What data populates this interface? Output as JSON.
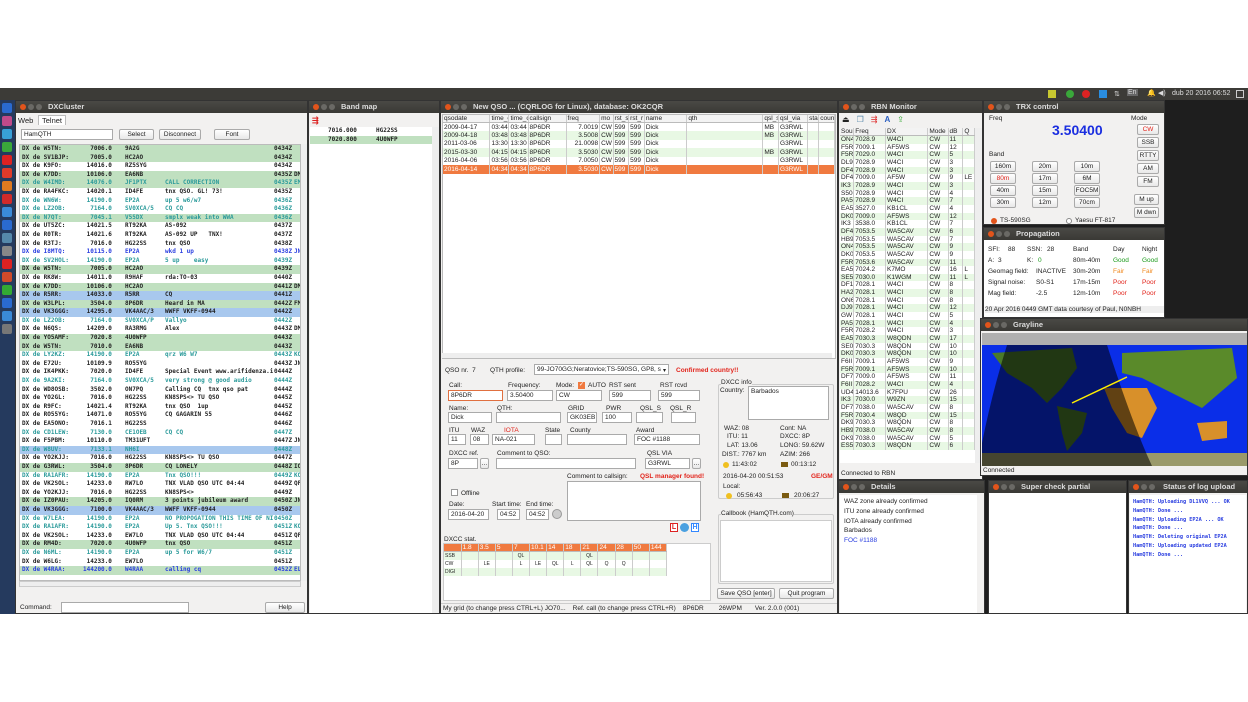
{
  "panel": {
    "clock": "dub 20 2016 06:52",
    "keyboard": "En"
  },
  "dxcluster": {
    "title": "DXCluster",
    "tabs": [
      "Web",
      "Telnet"
    ],
    "active_tab": "Telnet",
    "server": "HamQTH",
    "select": "Select",
    "disconnect": "Disconnect",
    "font": "Font",
    "command_label": "Command:",
    "command_value": "",
    "help": "Help",
    "rows": [
      [
        "W5TN:",
        "7006.0",
        "9A2G",
        "",
        "0434Z",
        "",
        "g",
        "k"
      ],
      [
        "SV1BJP:",
        "7005.0",
        "HC2AO",
        "",
        "0434Z",
        "",
        "g",
        "k"
      ],
      [
        "K9FO:",
        "14016.0",
        "RZ5SYG",
        "",
        "0434Z",
        "",
        "w",
        "k"
      ],
      [
        "K7DD:",
        "10106.0",
        "EA6NB",
        "",
        "0435Z",
        "DM33",
        "g",
        "k"
      ],
      [
        "W4IMD:",
        "14076.0",
        "JF1PTX",
        "CALL CORRECTION",
        "0435Z",
        "EM84",
        "g",
        "t"
      ],
      [
        "RA4FKC:",
        "14020.1",
        "ID4FE",
        "tnx QSO. GL! 73!",
        "0435Z",
        "",
        "w",
        "k"
      ],
      [
        "WN6W:",
        "14190.0",
        "EP2A",
        "up 5 w6/w7",
        "0436Z",
        "",
        "w",
        "t"
      ],
      [
        "LZ2OB:",
        "7164.0",
        "SV0XCA/5",
        "CQ CQ",
        "0436Z",
        "",
        "w",
        "t"
      ],
      [
        "N7QT:",
        "7045.1",
        "V55DX",
        "smplx weak into WWA",
        "0436Z",
        "",
        "g",
        "t"
      ],
      [
        "UT5ZC:",
        "14021.5",
        "RT92KA",
        "AS-092",
        "0437Z",
        "",
        "w",
        "k"
      ],
      [
        "R0TR:",
        "14021.6",
        "RT92KA",
        "AS-092 UP   TNX!",
        "0437Z",
        "",
        "w",
        "k"
      ],
      [
        "R3TJ:",
        "7016.0",
        "HG22SS",
        "tnx QSO",
        "0438Z",
        "",
        "w",
        "k"
      ],
      [
        "I8MTQ:",
        "10115.0",
        "EP2A",
        "wkd 1 up",
        "0438Z",
        "JN70",
        "w",
        "u"
      ],
      [
        "SV2HOL:",
        "14190.0",
        "EP2A",
        "5 up    easy",
        "0439Z",
        "",
        "w",
        "t"
      ],
      [
        "W5TN:",
        "7005.0",
        "HC2AO",
        "",
        "0439Z",
        "",
        "g",
        "k"
      ],
      [
        "RK8W:",
        "14011.0",
        "R9HAF",
        "rda:TO-03",
        "0440Z",
        "",
        "w",
        "k"
      ],
      [
        "K7DD:",
        "10106.0",
        "HC2AO",
        "",
        "0441Z",
        "DM33",
        "g",
        "k"
      ],
      [
        "R5RR:",
        "14033.0",
        "R5RR",
        "CQ",
        "0441Z",
        "",
        "b",
        "k"
      ],
      [
        "W3LPL:",
        "3504.0",
        "8P6DR",
        "Heard in MA",
        "0442Z",
        "FM19",
        "g",
        "k"
      ],
      [
        "VK3GGG:",
        "14295.0",
        "VK4AAC/3",
        "WWFF VKFF-0944",
        "0442Z",
        "",
        "b",
        "k"
      ],
      [
        "LZ2OB:",
        "7164.0",
        "SV0XCA/P",
        "Vallyo",
        "0442Z",
        "",
        "w",
        "t"
      ],
      [
        "N6QS:",
        "14209.0",
        "RA3RMG",
        "Alex",
        "0443Z",
        "DM14",
        "w",
        "k"
      ],
      [
        "YO5AMF:",
        "7020.8",
        "4U0WFP",
        "",
        "0443Z",
        "",
        "g",
        "k"
      ],
      [
        "W5TN:",
        "7010.0",
        "EA6NB",
        "",
        "0443Z",
        "",
        "g",
        "k"
      ],
      [
        "LY2KZ:",
        "14190.0",
        "EP2A",
        "qrz W6 W7",
        "0443Z",
        "KO25",
        "w",
        "t"
      ],
      [
        "E72U:",
        "10109.9",
        "RO55YG",
        "",
        "0443Z",
        "JN94",
        "w",
        "k"
      ],
      [
        "IK4PKK:",
        "7020.0",
        "ID4FE",
        "Special Event www.arifidenza.i",
        "0444Z",
        "",
        "w",
        "k"
      ],
      [
        "9A2KI:",
        "7164.0",
        "SV0XCA/5",
        "very strong @ good audio",
        "0444Z",
        "",
        "w",
        "t"
      ],
      [
        "WD8OSB:",
        "3502.0",
        "ON7PQ",
        "Calling CQ  tnx qso pat",
        "0444Z",
        "",
        "w",
        "k"
      ],
      [
        "YO2GL:",
        "7016.0",
        "HG22SS",
        "KN8SPS<> TU QSO",
        "0445Z",
        "",
        "w",
        "k"
      ],
      [
        "R9FC:",
        "14021.4",
        "RT92KA",
        "tnx QSO  1up",
        "0445Z",
        "",
        "w",
        "k"
      ],
      [
        "RO55YG:",
        "14071.0",
        "RO55YG",
        "CQ GAGARIN 55",
        "0446Z",
        "",
        "w",
        "k"
      ],
      [
        "EA5ONO:",
        "7016.1",
        "HG22SS",
        "",
        "0446Z",
        "",
        "w",
        "k"
      ],
      [
        "CD1LEW:",
        "7130.0",
        "CE1OEB",
        "CQ CQ",
        "0447Z",
        "",
        "w",
        "t"
      ],
      [
        "F5PBM:",
        "10110.0",
        "TM31UFT",
        "",
        "0447Z",
        "JN18",
        "w",
        "k"
      ],
      [
        "W8UV:",
        "7133.1",
        "NH6I",
        "",
        "0448Z",
        "",
        "b",
        "t"
      ],
      [
        "YO2KJJ:",
        "7016.0",
        "HG22SS",
        "KN8SPS<> TU QSO",
        "0447Z",
        "",
        "w",
        "k"
      ],
      [
        "G3RWL:",
        "3504.0",
        "8P6DR",
        "CQ LONELY",
        "0448Z",
        "IO91",
        "g",
        "k"
      ],
      [
        "RA1AFR:",
        "14190.0",
        "EP2A",
        "Tnx QSO!!!",
        "0449Z",
        "KO59",
        "w",
        "t"
      ],
      [
        "VK2SOL:",
        "14233.0",
        "RW7LO",
        "TNX VLAD QSO UTC 04:44",
        "0449Z",
        "QF56",
        "w",
        "k"
      ],
      [
        "YO2KJJ:",
        "7016.0",
        "HG22SS",
        "KN8SPS<>",
        "0449Z",
        "",
        "w",
        "k"
      ],
      [
        "IZ0PAU:",
        "14205.0",
        "IQ0RM",
        "3 points jubileum award",
        "0450Z",
        "JN61",
        "g",
        "k"
      ],
      [
        "VK3GGG:",
        "7100.0",
        "VK4AAC/3",
        "WWFF VKFF-0944",
        "0450Z",
        "",
        "b",
        "k"
      ],
      [
        "W7LEA:",
        "14190.0",
        "EP2A",
        "NO PROPOGATION THIS TIME OF NI",
        "0450Z",
        "",
        "w",
        "t"
      ],
      [
        "RA1AFR:",
        "14190.0",
        "EP2A",
        "Up 5. Tnx QSO!!!",
        "0451Z",
        "KO59",
        "w",
        "t"
      ],
      [
        "VK2SOL:",
        "14233.0",
        "EW7LO",
        "TNX VLAD QSO UTC 04:44",
        "0451Z",
        "QF56",
        "w",
        "k"
      ],
      [
        "RM4D:",
        "7020.0",
        "4U0WFP",
        "tnx QSO",
        "0451Z",
        "",
        "g",
        "k"
      ],
      [
        "N6ML:",
        "14190.0",
        "EP2A",
        "up 5 for W6/7",
        "0451Z",
        "",
        "w",
        "t"
      ],
      [
        "W6LG:",
        "14233.0",
        "EW7LO",
        "",
        "0451Z",
        "",
        "w",
        "k"
      ],
      [
        "W4RAA:",
        "144200.0",
        "W4RAA",
        "calling cq",
        "0452Z",
        "EL99",
        "g",
        "u"
      ]
    ]
  },
  "bandmap": {
    "title": "Band map",
    "rows": [
      [
        "7016.000",
        "HG22SS",
        false
      ],
      [
        "7020.800",
        "4U0WFP",
        true
      ]
    ]
  },
  "qso": {
    "title": "New QSO ... (CQRLOG for Linux), database: OK2CQR",
    "columns": [
      "qsodate",
      "time_o",
      "time_o",
      "callsign",
      "freq",
      "mo",
      "rst_s",
      "rst_r",
      "name",
      "qth",
      "qsl_s",
      "qsl_via",
      "stab",
      "coun"
    ],
    "rows": [
      [
        "2009-04-17",
        "03:44",
        "03:44",
        "8P6DR",
        "7.0019",
        "CW",
        "599",
        "599",
        "Dick",
        "",
        "MB",
        "G3RWL",
        "",
        ""
      ],
      [
        "2009-04-18",
        "03:48",
        "03:48",
        "8P6DR",
        "3.5008",
        "CW",
        "599",
        "599",
        "Dick",
        "",
        "MB",
        "G3RWL",
        "",
        ""
      ],
      [
        "2011-03-06",
        "13:30",
        "13:30",
        "8P6DR",
        "21.0098",
        "CW",
        "599",
        "599",
        "Dick",
        "",
        "",
        "G3RWL",
        "",
        ""
      ],
      [
        "2015-03-30",
        "04:15",
        "04:15",
        "8P6DR",
        "3.5030",
        "CW",
        "599",
        "599",
        "Dick",
        "",
        "MB",
        "G3RWL",
        "",
        ""
      ],
      [
        "2016-04-06",
        "03:56",
        "03:56",
        "8P6DR",
        "7.0050",
        "CW",
        "599",
        "599",
        "Dick",
        "",
        "",
        "G3RWL",
        "",
        ""
      ],
      [
        "2016-04-14",
        "04:34",
        "04:34",
        "8P6DR",
        "3.5030",
        "CW",
        "599",
        "599",
        "Dick",
        "",
        "",
        "G3RWL",
        "",
        ""
      ]
    ],
    "qso_nr_label": "QSO nr.",
    "qso_nr": "7",
    "qth_profile_label": "QTH profile:",
    "qth_profile": "99-JO70GG;Neratovice;TS-590SG, GP8, s",
    "confirmed": "Confirmed country!!",
    "call_label": "Call:",
    "call": "8P6DR",
    "freq_label": "Frequency:",
    "freq": "3.50400",
    "mode_label": "Mode:",
    "auto_label": "AUTO",
    "mode": "CW",
    "rst_sent_label": "RST sent",
    "rst_sent": "599",
    "rst_rcvd_label": "RST rcvd",
    "rst_rcvd": "599",
    "name_label": "Name:",
    "name": "Dick",
    "qth_label": "QTH:",
    "qth": "",
    "grid_label": "GRID",
    "grid": "GK03EB",
    "pwr_label": "PWR",
    "pwr": "100",
    "qsl_s_label": "QSL_S",
    "qsl_r_label": "QSL_R",
    "itu_label": "ITU",
    "itu": "11",
    "waz_label": "WAZ",
    "waz": "08",
    "iota_label": "IOTA",
    "iota": "NA-021",
    "state_label": "State",
    "county_label": "County",
    "award_label": "Award",
    "award": "FOC #1188",
    "dxcc_ref_label": "DXCC ref.",
    "dxcc_ref": "8P",
    "comment_qso_label": "Comment to QSO:",
    "qsl_via_label": "QSL VIA",
    "qsl_via": "G3RWL",
    "comment_call_label": "Comment to callsign:",
    "qsl_mgr": "QSL manager found!",
    "offline_label": "Offline",
    "date_label": "Date:",
    "date": "2016-04-20",
    "start_label": "Start time:",
    "start": "04:52",
    "end_label": "End time:",
    "end": "04:52",
    "dxcc_info": {
      "title": "DXCC info",
      "country_label": "Country:",
      "country": "Barbados",
      "waz": "WAZ: 08",
      "cont": "Cont:  NA",
      "itu": "ITU: 11",
      "dxcc": "DXCC: 8P",
      "lat": "LAT: 13.06",
      "long": "LONG: 59.62W",
      "dist": "DIST.: 7767 km",
      "azim": "AZIM: 266",
      "sunrise": "11:43:02",
      "sunset": "00:13:12",
      "datetime": "2016-04-20  00:51:53",
      "prefix": "GE/GM",
      "local_label": "Local:",
      "local_sunrise": "05:56:43",
      "local_sunset": "20:06:27"
    },
    "callbook_title": "Callbook (HamQTH.com)",
    "dxcc_stat": {
      "title": "DXCC stat.",
      "bands": [
        "1.8",
        "3.5",
        "5",
        "7",
        "10.1",
        "14",
        "18",
        "21",
        "24",
        "28",
        "50",
        "144"
      ],
      "rows": [
        [
          "SSB",
          "",
          "",
          "",
          "QL",
          "",
          "",
          "",
          "QL",
          "",
          "",
          "",
          ""
        ],
        [
          "CW",
          "",
          "LE",
          "",
          "L",
          "LE",
          "QL",
          "L",
          "QL",
          "Q",
          "Q",
          "",
          ""
        ],
        [
          "DIGI",
          "",
          "",
          "",
          "",
          "",
          "",
          "",
          "",
          "",
          "",
          "",
          ""
        ]
      ]
    },
    "save": "Save QSO [enter]",
    "quit": "Quit program",
    "status": [
      "My grid (to change press CTRL+L) JO70...",
      "Ref. call (to change press CTRL+R)",
      "8P6DR",
      "26WPM",
      "Ver. 2.0.0 (001)"
    ]
  },
  "rbn": {
    "title": "RBN Monitor",
    "columns": [
      "Sou",
      "Freq",
      "DX",
      "Mode",
      "dB",
      "Q"
    ],
    "status": "Connected to RBN",
    "rows": [
      [
        "ON4",
        "7028.9",
        "W4CI",
        "CW",
        "11",
        ""
      ],
      [
        "F5R",
        "7009.1",
        "AF5WS",
        "CW",
        "12",
        ""
      ],
      [
        "F5R",
        "7029.0",
        "W4CI",
        "CW",
        "5",
        ""
      ],
      [
        "DL9",
        "7028.9",
        "W4CI",
        "CW",
        "3",
        ""
      ],
      [
        "DF4",
        "7028.9",
        "W4CI",
        "CW",
        "3",
        ""
      ],
      [
        "DF4",
        "7009.0",
        "AF5W",
        "CW",
        "9",
        "LE"
      ],
      [
        "IK3",
        "7028.9",
        "W4CI",
        "CW",
        "3",
        ""
      ],
      [
        "S50",
        "7028.9",
        "W4CI",
        "CW",
        "4",
        ""
      ],
      [
        "PA5",
        "7028.9",
        "W4CI",
        "CW",
        "7",
        ""
      ],
      [
        "EA5",
        "3527.0",
        "KB1CL",
        "CW",
        "4",
        ""
      ],
      [
        "DK0",
        "7009.0",
        "AF5WS",
        "CW",
        "12",
        ""
      ],
      [
        "IK3",
        "3538.0",
        "KB1CL",
        "CW",
        "7",
        ""
      ],
      [
        "DF4",
        "7053.5",
        "WA5CAV",
        "CW",
        "6",
        ""
      ],
      [
        "HB9",
        "7053.5",
        "WA5CAV",
        "CW",
        "7",
        ""
      ],
      [
        "ON4",
        "7053.5",
        "WA5CAV",
        "CW",
        "9",
        ""
      ],
      [
        "DK0",
        "7053.5",
        "WA5CAV",
        "CW",
        "9",
        ""
      ],
      [
        "F5R",
        "7053.6",
        "WA5CAV",
        "CW",
        "11",
        ""
      ],
      [
        "EA5",
        "7024.2",
        "K7MO",
        "CW",
        "16",
        "L"
      ],
      [
        "SE5",
        "7030.0",
        "K1WGM",
        "CW",
        "11",
        "L"
      ],
      [
        "DF1",
        "7028.1",
        "W4CI",
        "CW",
        "8",
        ""
      ],
      [
        "HA2",
        "7028.1",
        "W4CI",
        "CW",
        "8",
        ""
      ],
      [
        "ON6",
        "7028.1",
        "W4CI",
        "CW",
        "8",
        ""
      ],
      [
        "DJ9",
        "7028.1",
        "W4CI",
        "CW",
        "12",
        ""
      ],
      [
        "GW",
        "7028.1",
        "W4CI",
        "CW",
        "5",
        ""
      ],
      [
        "PA5",
        "7028.1",
        "W4CI",
        "CW",
        "4",
        ""
      ],
      [
        "F5R",
        "7028.2",
        "W4CI",
        "CW",
        "3",
        ""
      ],
      [
        "EA5",
        "7030.3",
        "W8QDN",
        "CW",
        "17",
        ""
      ],
      [
        "SE0",
        "7030.3",
        "W8QDN",
        "CW",
        "10",
        ""
      ],
      [
        "DK0",
        "7030.3",
        "W8QDN",
        "CW",
        "10",
        ""
      ],
      [
        "F6II",
        "7009.1",
        "AF5WS",
        "CW",
        "9",
        ""
      ],
      [
        "F5R",
        "7009.1",
        "AF5WS",
        "CW",
        "10",
        ""
      ],
      [
        "DF7",
        "7009.0",
        "AF5WS",
        "CW",
        "11",
        ""
      ],
      [
        "F6II",
        "7028.2",
        "W4CI",
        "CW",
        "4",
        ""
      ],
      [
        "UD4",
        "14013.6",
        "K7FPU",
        "CW",
        "26",
        ""
      ],
      [
        "IK3",
        "7030.0",
        "W9ZN",
        "CW",
        "15",
        ""
      ],
      [
        "DF7",
        "7038.0",
        "WA5CAV",
        "CW",
        "8",
        ""
      ],
      [
        "F5R",
        "7030.4",
        "W8QD",
        "CW",
        "15",
        ""
      ],
      [
        "DK9",
        "7030.3",
        "W8QDN",
        "CW",
        "8",
        ""
      ],
      [
        "HB9",
        "7038.0",
        "WA5CAV",
        "CW",
        "8",
        ""
      ],
      [
        "DK9",
        "7038.0",
        "WA5CAV",
        "CW",
        "5",
        ""
      ],
      [
        "ES5",
        "7030.3",
        "W8QDN",
        "CW",
        "6",
        ""
      ]
    ]
  },
  "trx": {
    "title": "TRX control",
    "freq_label": "Freq",
    "freq": "3.50400",
    "band_label": "Band",
    "mode_label": "Mode",
    "bands": [
      "160m",
      "20m",
      "10m",
      "80m",
      "17m",
      "6M",
      "40m",
      "15m",
      "FOC5M",
      "30m",
      "12m",
      "70cm"
    ],
    "active_band": "80m",
    "modes": [
      "CW",
      "SSB",
      "RTTY",
      "AM",
      "FM"
    ],
    "active_mode": "CW",
    "mup": "M up",
    "mdwn": "M dwn",
    "rig1": "TS-590SG",
    "rig2": "Yaesu FT-817"
  },
  "prop": {
    "title": "Propagation",
    "sfi_label": "SFI:",
    "sfi": "88",
    "ssn_label": "SSN:",
    "ssn": "28",
    "band_h": "Band",
    "day_h": "Day",
    "night_h": "Night",
    "a_label": "A:",
    "a": "3",
    "k_label": "K:",
    "k": "0",
    "geomag_label": "Geomag field:",
    "geomag": "INACTIVE",
    "noise_label": "Signal noise:",
    "noise": "S0-S1",
    "mag_label": "Mag field:",
    "mag": "-2.5",
    "bands": [
      [
        "80m-40m",
        "Good",
        "Good"
      ],
      [
        "30m-20m",
        "Fair",
        "Fair"
      ],
      [
        "17m-15m",
        "Poor",
        "Poor"
      ],
      [
        "12m-10m",
        "Poor",
        "Poor"
      ]
    ],
    "footer": "20 Apr 2016 0449 GMT data courtesy of Paul, N0NBH"
  },
  "grayline": {
    "title": "Grayline",
    "status": "Connected"
  },
  "details": {
    "title": "Details",
    "lines": [
      "WAZ zone already confirmed",
      "ITU zone already confirmed",
      "IOTA already confirmed",
      "Barbados",
      "FOC #1188"
    ]
  },
  "scp": {
    "title": "Super check partial"
  },
  "upload": {
    "title": "Status of log upload",
    "lines": [
      "HamQTH: Uploading DL1VVQ ... OK",
      "HamQTH: Done ...",
      "HamQTH: Uploading EP2A ... OK",
      "HamQTH: Done ...",
      "HamQTH: Deleting original EP2A",
      "HamQTH: Uploading updated EP2A",
      "HamQTH: Done ..."
    ]
  },
  "colors": {
    "spot_green": "#c0e0c0",
    "spot_blue": "#a8c8ee",
    "selected_row": "#f07a40",
    "freq_blue": "#1a2ee0",
    "warning_red": "#e2231a"
  }
}
